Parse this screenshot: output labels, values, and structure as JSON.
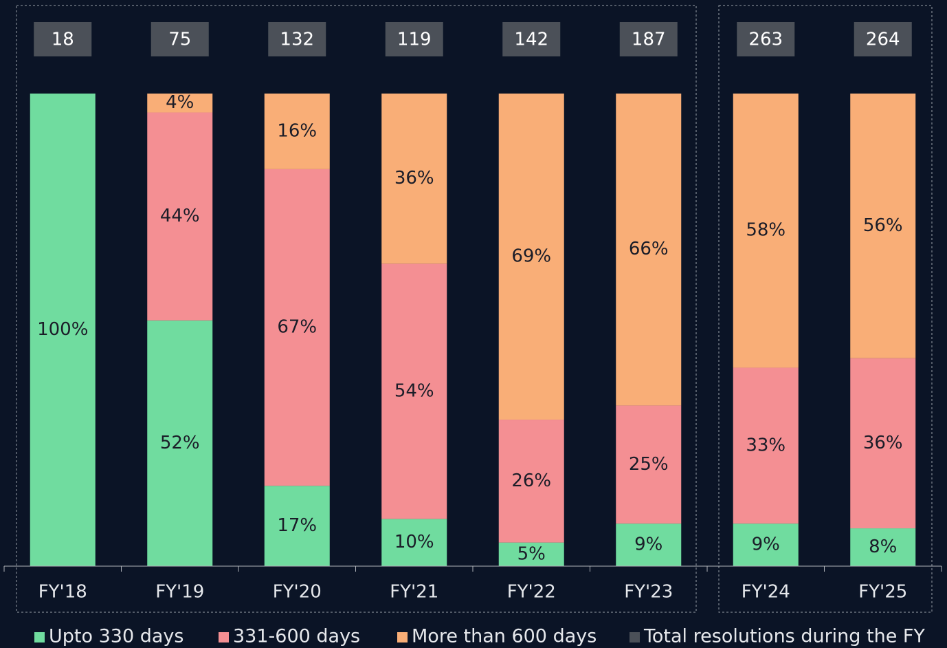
{
  "chart_data": {
    "type": "stacked-bar",
    "categories": [
      "FY'18",
      "FY'19",
      "FY'20",
      "FY'21",
      "FY'22",
      "FY'23",
      "FY'24",
      "FY'25"
    ],
    "series": [
      {
        "name": "Upto 330 days",
        "color": "#70dc9f",
        "values": [
          100,
          52,
          17,
          10,
          5,
          9,
          9,
          8
        ],
        "value_labels": [
          "100%",
          "52%",
          "17%",
          "10%",
          "5%",
          "9%",
          "9%",
          "8%"
        ]
      },
      {
        "name": "331-600 days",
        "color": "#f48f93",
        "values": [
          null,
          44,
          67,
          54,
          26,
          25,
          33,
          36
        ],
        "value_labels": [
          null,
          "44%",
          "67%",
          "54%",
          "26%",
          "25%",
          "33%",
          "36%"
        ]
      },
      {
        "name": "More than 600 days",
        "color": "#f9ae77",
        "values": [
          null,
          4,
          16,
          36,
          69,
          66,
          58,
          56
        ],
        "value_labels": [
          null,
          "4%",
          "16%",
          "36%",
          "69%",
          "66%",
          "58%",
          "56%"
        ]
      }
    ],
    "totals": {
      "name": "Total resolutions during the FY",
      "color": "#4b5058",
      "values": [
        18,
        75,
        132,
        119,
        142,
        187,
        263,
        264
      ]
    },
    "ylim": [
      0,
      100
    ]
  }
}
